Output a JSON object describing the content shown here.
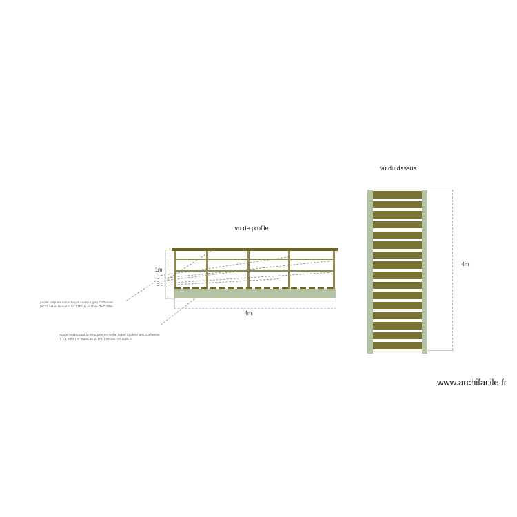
{
  "page": {
    "watermark": "www.archifacile.fr"
  },
  "colors": {
    "olive_dark": "#6c6526",
    "olive": "#7b7334",
    "olive_light": "#8f8950",
    "sage": "#b4c3a4",
    "hairline": "#c6c6c6",
    "box_border": "#d3d7cb",
    "leader": "#9a9a96",
    "title_text": "#1a1a1a",
    "dim_text": "#3c3c3c",
    "annotation_text": "#61615a"
  },
  "profile_view": {
    "title": "vu de profile",
    "height_dim": "1m",
    "width_dim": "4m",
    "post_count": 5,
    "annotations": [
      {
        "line1": "garde corp en métal laqué couleur gris Colbense",
        "line2": "(n°71 selon le nuancier ZITAU) section de 0,05m"
      },
      {
        "line1": "poutre supportant la structure en métal laqué couleur gris Colbense",
        "line2": "(n°71 selon le nuancier ZITAU) section de 0,25 m"
      }
    ]
  },
  "top_view": {
    "title": "vu du dessus",
    "height_dim": "4m",
    "slat_count": 16
  }
}
